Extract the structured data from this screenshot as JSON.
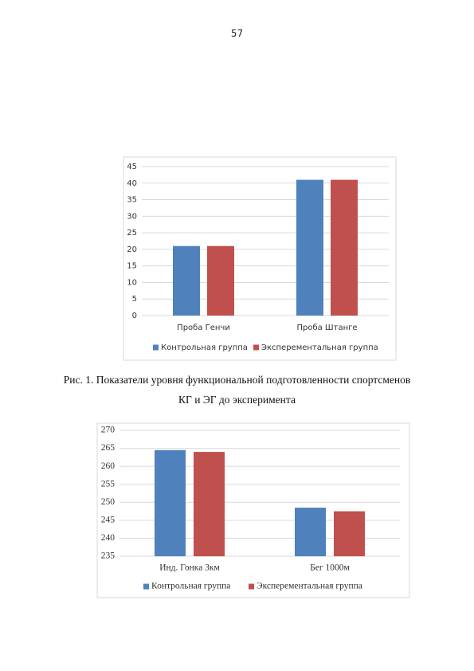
{
  "page_number": "57",
  "caption": [
    "Рис. 1. Показатели уровня функциональной подготовленности спортсменов",
    "КГ и ЭГ до эксперимента"
  ],
  "chart_data": [
    {
      "type": "bar",
      "categories": [
        "Проба Генчи",
        "Проба Штанге"
      ],
      "series": [
        {
          "name": "Контрольная группа",
          "color": "#4f81bd",
          "values": [
            21,
            41
          ]
        },
        {
          "name": "Эксперементальная группа",
          "color": "#c0504d",
          "values": [
            21,
            41
          ]
        }
      ],
      "ylim": [
        0,
        45
      ],
      "yticks": [
        0,
        5,
        10,
        15,
        20,
        25,
        30,
        35,
        40,
        45
      ],
      "grid": true,
      "legend": "bottom"
    },
    {
      "type": "bar",
      "categories": [
        "Инд. Гонка 3км",
        "Бег 1000м"
      ],
      "series": [
        {
          "name": "Контрольная группа",
          "color": "#4f81bd",
          "values": [
            264.5,
            248.5
          ]
        },
        {
          "name": "Эксперементальная группа",
          "color": "#c0504d",
          "values": [
            264,
            247.5
          ]
        }
      ],
      "ylim": [
        235,
        270
      ],
      "yticks": [
        235,
        240,
        245,
        250,
        255,
        260,
        265,
        270
      ],
      "grid": true,
      "legend": "bottom"
    }
  ]
}
